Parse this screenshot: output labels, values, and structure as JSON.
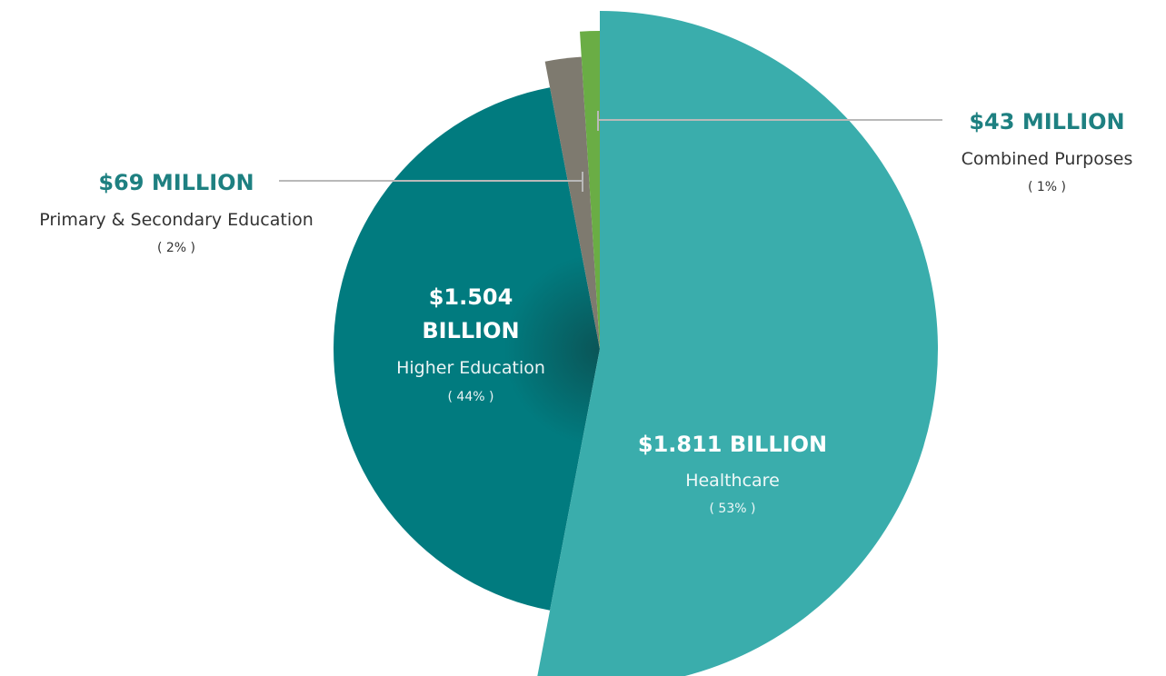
{
  "colors": {
    "healthcare": "#3aadac",
    "higher_education": "#017b7f",
    "primary_secondary": "#7e7a6f",
    "combined_purposes": "#6aad45",
    "label_accent": "#1e8081",
    "leader_line": "#b9b9b9"
  },
  "chart_data": {
    "type": "pie",
    "style": "exploded slices with varying radii",
    "slices": [
      {
        "key": "healthcare",
        "amount": "$1.811 BILLION",
        "category": "Healthcare",
        "percent_label": "( 53% )",
        "value": 1.811,
        "percent": 53
      },
      {
        "key": "higher_education",
        "amount_line1": "$1.504",
        "amount_line2": "BILLION",
        "category": "Higher Education",
        "percent_label": "( 44% )",
        "value": 1.504,
        "percent": 44
      },
      {
        "key": "primary_secondary",
        "amount": "$69 MILLION",
        "category": "Primary & Secondary Education",
        "percent_label": "( 2% )",
        "value": 0.069,
        "percent": 2
      },
      {
        "key": "combined_purposes",
        "amount": "$43 MILLION",
        "category": "Combined Purposes",
        "percent_label": "( 1% )",
        "value": 0.043,
        "percent": 1
      }
    ]
  }
}
